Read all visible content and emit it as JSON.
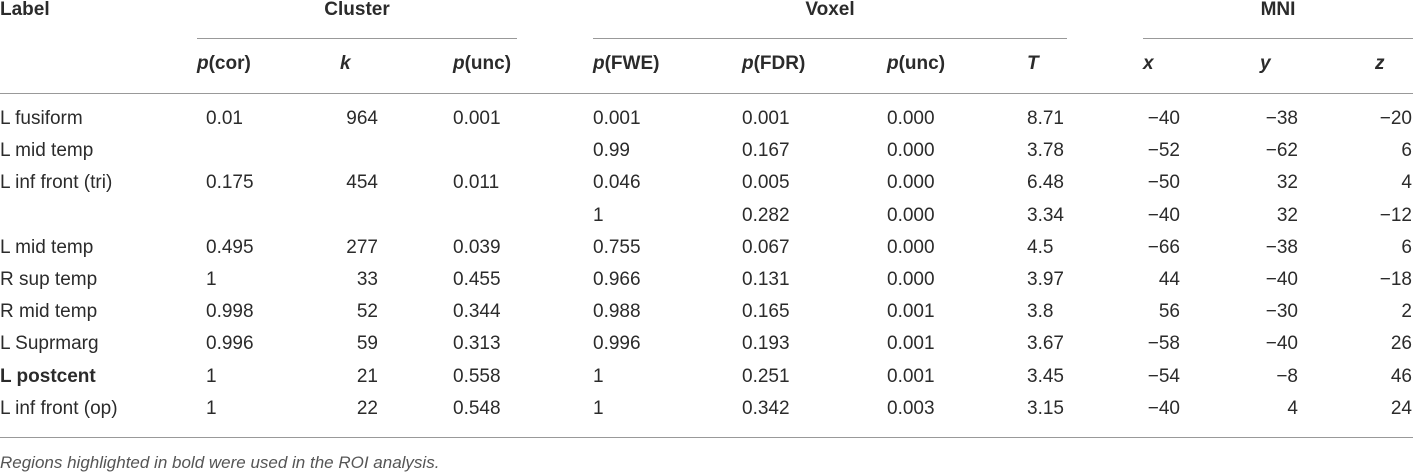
{
  "table": {
    "groups": [
      "Label",
      "Cluster",
      "Voxel",
      "MNI"
    ],
    "columns": [
      {
        "var": "p",
        "suffix": "(cor)"
      },
      {
        "var": "k"
      },
      {
        "var": "p",
        "suffix": "(unc)"
      },
      {
        "var": "p",
        "suffix": "(FWE)"
      },
      {
        "var": "p",
        "suffix": "(FDR)"
      },
      {
        "var": "p",
        "suffix": "(unc)"
      },
      {
        "var": "T"
      },
      {
        "var": "x"
      },
      {
        "var": "y"
      },
      {
        "var": "z"
      }
    ],
    "rows": [
      {
        "label": "L fusiform",
        "cells": [
          "0.01",
          "964",
          "0.001",
          "0.001",
          "0.001",
          "0.000",
          "8.71",
          "−40",
          "−38",
          "−20"
        ]
      },
      {
        "label": "L mid temp",
        "cells": [
          null,
          null,
          null,
          "0.99",
          "0.167",
          "0.000",
          "3.78",
          "−52",
          "−62",
          "6"
        ]
      },
      {
        "label": "L inf front (tri)",
        "cells": [
          "0.175",
          "454",
          "0.011",
          "0.046",
          "0.005",
          "0.000",
          "6.48",
          "−50",
          "32",
          "4"
        ]
      },
      {
        "label": null,
        "cells": [
          null,
          null,
          null,
          "1",
          "0.282",
          "0.000",
          "3.34",
          "−40",
          "32",
          "−12"
        ]
      },
      {
        "label": "L mid temp",
        "cells": [
          "0.495",
          "277",
          "0.039",
          "0.755",
          "0.067",
          "0.000",
          "4.5",
          "−66",
          "−38",
          "6"
        ]
      },
      {
        "label": "R sup temp",
        "cells": [
          "1",
          "33",
          "0.455",
          "0.966",
          "0.131",
          "0.000",
          "3.97",
          "44",
          "−40",
          "−18"
        ]
      },
      {
        "label": "R mid temp",
        "cells": [
          "0.998",
          "52",
          "0.344",
          "0.988",
          "0.165",
          "0.001",
          "3.8",
          "56",
          "−30",
          "2"
        ]
      },
      {
        "label": "L Suprmarg",
        "cells": [
          "0.996",
          "59",
          "0.313",
          "0.996",
          "0.193",
          "0.001",
          "3.67",
          "−58",
          "−40",
          "26"
        ]
      },
      {
        "label": "L postcent",
        "bold": true,
        "cells": [
          "1",
          "21",
          "0.558",
          "1",
          "0.251",
          "0.001",
          "3.45",
          "−54",
          "−8",
          "46"
        ]
      },
      {
        "label": "L inf front (op)",
        "cells": [
          "1",
          "22",
          "0.548",
          "1",
          "0.342",
          "0.003",
          "3.15",
          "−40",
          "4",
          "24"
        ]
      }
    ],
    "footnote": "Regions highlighted in bold were used in the ROI analysis."
  }
}
